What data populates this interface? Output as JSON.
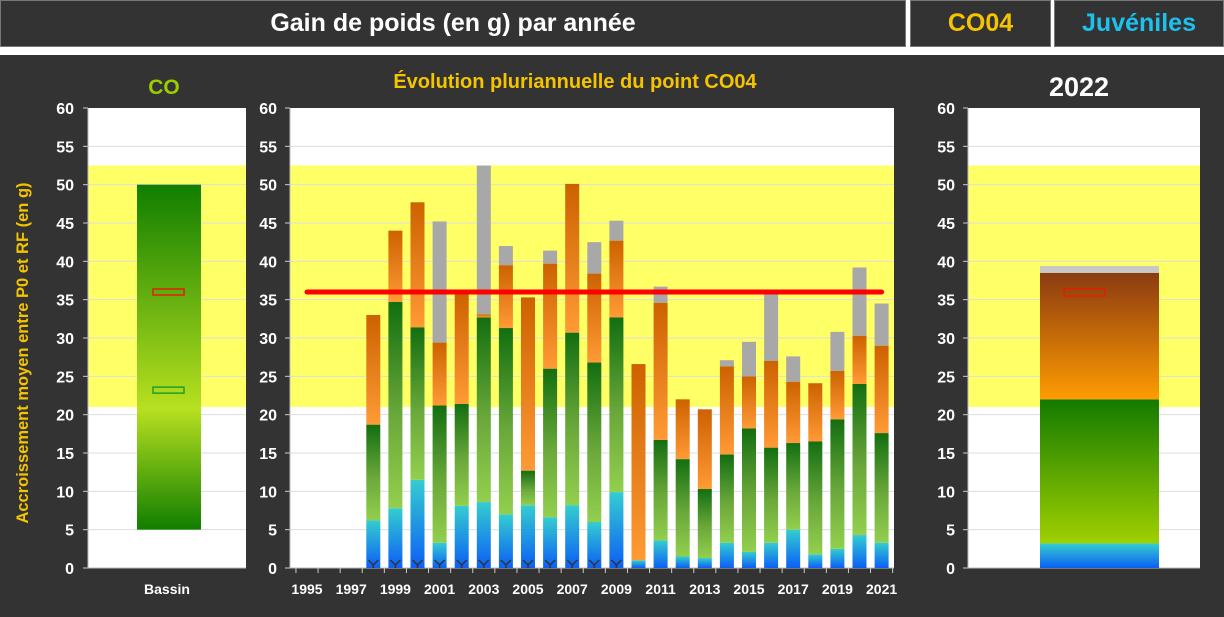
{
  "header": {
    "title": "Gain de poids (en g) par année",
    "point": "CO04",
    "category": "Juvéniles"
  },
  "colors": {
    "point": "#f5c400",
    "category": "#1ec0ee",
    "co": "#9acd00",
    "axis_label": "#f5c400",
    "band": "#ffff66",
    "reference": "#ff0000"
  },
  "chart_data": [
    {
      "type": "bar",
      "title": "CO",
      "ylabel": "Accroissement  moyen entre P0 et RF (en g)",
      "ylim": [
        0,
        60
      ],
      "yticks": [
        0,
        5,
        10,
        15,
        20,
        25,
        30,
        35,
        40,
        45,
        50,
        55,
        60
      ],
      "categories": [
        "Bassin"
      ],
      "band": [
        21,
        52.5
      ],
      "range_bar": {
        "low": 5,
        "high": 50
      },
      "markers": [
        {
          "name": "point",
          "value": 36,
          "color": "#e02000"
        },
        {
          "name": "basin",
          "value": 23.2,
          "color": "#20a020"
        }
      ]
    },
    {
      "type": "stacked-bar",
      "title": "Évolution pluriannuelle du point CO04",
      "ylim": [
        0,
        60
      ],
      "yticks": [
        0,
        5,
        10,
        15,
        20,
        25,
        30,
        35,
        40,
        45,
        50,
        55,
        60
      ],
      "xticks": [
        "1995",
        "1997",
        "1999",
        "2001",
        "2003",
        "2005",
        "2007",
        "2009",
        "2011",
        "2013",
        "2015",
        "2017",
        "2019",
        "2021"
      ],
      "band": [
        21,
        52.5
      ],
      "reference_line": 36,
      "series_names": [
        "blue",
        "green",
        "orange",
        "gray"
      ],
      "x": [
        1998,
        1999,
        2000,
        2001,
        2002,
        2003,
        2004,
        2005,
        2006,
        2007,
        2008,
        2009,
        2010,
        2011,
        2012,
        2013,
        2014,
        2015,
        2016,
        2017,
        2018,
        2019,
        2020,
        2021
      ],
      "cumulative_tops": [
        [
          6.2,
          18.7,
          33.0,
          33.0
        ],
        [
          7.8,
          34.7,
          44.0,
          44.0
        ],
        [
          11.5,
          31.4,
          47.7,
          47.7
        ],
        [
          3.3,
          21.2,
          29.4,
          45.2
        ],
        [
          8.1,
          21.4,
          35.8,
          35.8
        ],
        [
          8.6,
          32.7,
          33.1,
          52.5
        ],
        [
          7.0,
          31.3,
          39.5,
          42.0
        ],
        [
          8.2,
          12.7,
          35.3,
          35.3
        ],
        [
          6.6,
          26.0,
          39.7,
          41.4
        ],
        [
          8.2,
          30.7,
          50.1,
          50.1
        ],
        [
          6.0,
          26.8,
          38.4,
          42.5
        ],
        [
          9.9,
          32.7,
          42.7,
          45.3
        ],
        [
          1.0,
          1.0,
          26.6,
          26.6
        ],
        [
          3.6,
          16.7,
          34.6,
          36.7
        ],
        [
          1.5,
          14.2,
          22.0,
          22.0
        ],
        [
          1.3,
          10.3,
          20.7,
          20.7
        ],
        [
          3.3,
          14.8,
          26.3,
          27.1
        ],
        [
          2.1,
          18.2,
          25.0,
          29.5
        ],
        [
          3.3,
          15.7,
          27.0,
          35.8
        ],
        [
          5.0,
          16.3,
          24.3,
          27.6
        ],
        [
          1.8,
          16.5,
          24.1,
          24.1
        ],
        [
          2.5,
          19.4,
          25.7,
          30.8
        ],
        [
          4.3,
          24.0,
          30.3,
          39.2
        ],
        [
          3.3,
          17.6,
          29.0,
          34.5
        ]
      ],
      "flagged_years": [
        1998,
        1999,
        2000,
        2001,
        2002,
        2003,
        2004,
        2005,
        2006,
        2007,
        2008,
        2009
      ]
    },
    {
      "type": "stacked-bar",
      "title": "2022",
      "ylim": [
        0,
        60
      ],
      "yticks": [
        0,
        5,
        10,
        15,
        20,
        25,
        30,
        35,
        40,
        45,
        50,
        55,
        60
      ],
      "band": [
        21,
        52.5
      ],
      "cumulative_tops": [
        3.2,
        22.0,
        38.5,
        39.4
      ],
      "marker": 36
    }
  ]
}
